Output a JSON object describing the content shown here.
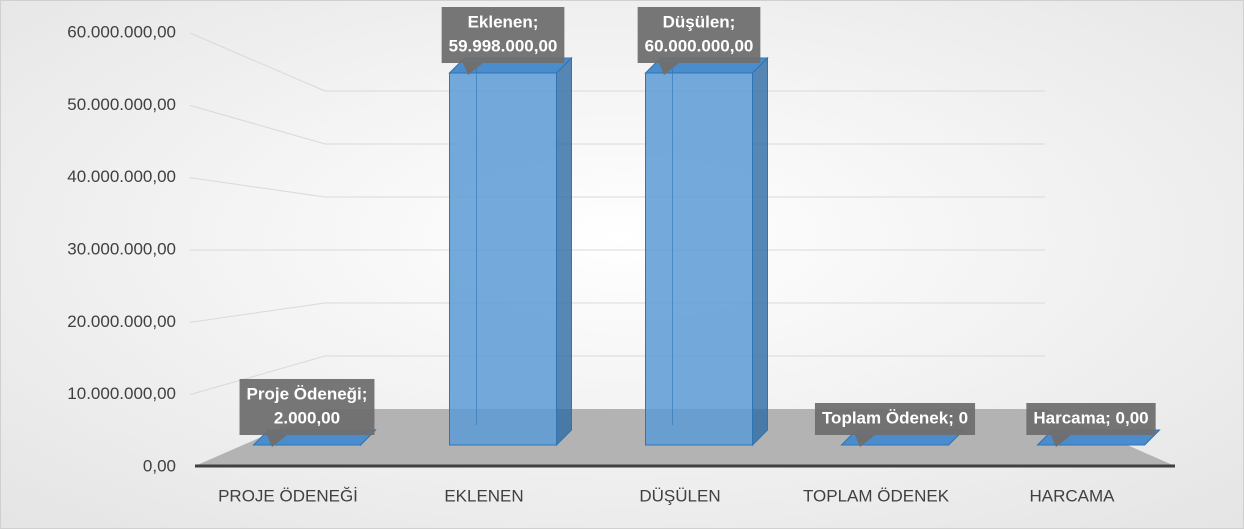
{
  "chart_data": {
    "type": "bar3d",
    "categories": [
      "PROJE ÖDENEĞİ",
      "EKLENEN",
      "DÜŞÜLEN",
      "TOPLAM ÖDENEK",
      "HARCAMA"
    ],
    "values": [
      2000,
      59998000,
      60000000,
      0,
      0
    ],
    "value_labels": [
      [
        "Proje Ödeneği;",
        "2.000,00"
      ],
      [
        "Eklenen;",
        "59.998.000,00"
      ],
      [
        "Düşülen;",
        "60.000.000,00"
      ],
      [
        "Toplam Ödenek; 0"
      ],
      [
        "Harcama; 0,00"
      ]
    ],
    "color": "#5b9bd5",
    "ylim": [
      0,
      60000000
    ],
    "yticks": [
      {
        "value": 0,
        "label": "0,00"
      },
      {
        "value": 10000000,
        "label": "10.000.000,00"
      },
      {
        "value": 20000000,
        "label": "20.000.000,00"
      },
      {
        "value": 30000000,
        "label": "30.000.000,00"
      },
      {
        "value": 40000000,
        "label": "40.000.000,00"
      },
      {
        "value": 50000000,
        "label": "50.000.000,00"
      },
      {
        "value": 60000000,
        "label": "60.000.000,00"
      }
    ],
    "grid": true
  }
}
